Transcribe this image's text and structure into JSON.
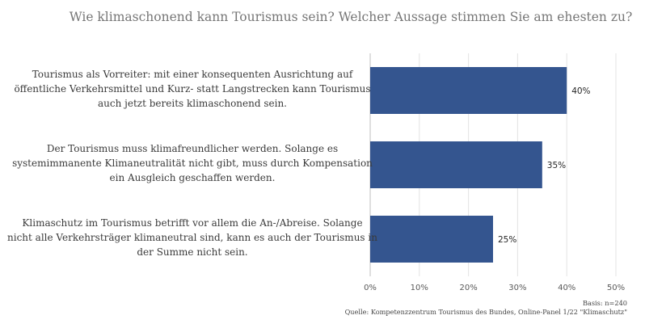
{
  "chart_data": {
    "type": "bar",
    "orientation": "horizontal",
    "title": "Wie klimaschonend kann Tourismus sein? Welcher Aussage stimmen Sie am ehesten zu?",
    "categories": [
      [
        "Tourismus als Vorreiter: mit einer konsequenten Ausrichtung auf",
        "öffentliche Verkehrsmittel und Kurz- statt Langstrecken kann Tourismus",
        "auch jetzt bereits klimaschonend sein."
      ],
      [
        "Der Tourismus muss klimafreundlicher werden. Solange es",
        "systemimmanente Klimaneutralität nicht gibt, muss durch Kompensation",
        "ein Ausgleich geschaffen werden."
      ],
      [
        "Klimaschutz im Tourismus betrifft vor allem die An-/Abreise. Solange",
        "nicht alle Verkehrsträger klimaneutral sind, kann es auch der Tourismus in",
        "der Summe nicht sein."
      ]
    ],
    "values": [
      40,
      35,
      25
    ],
    "data_labels": [
      "40%",
      "35%",
      "25%"
    ],
    "xlim": [
      0,
      50
    ],
    "ticks": [
      "0%",
      "10%",
      "20%",
      "30%",
      "40%",
      "50%"
    ],
    "tick_values": [
      0,
      10,
      20,
      30,
      40,
      50
    ],
    "grid": true,
    "bar_color": "#34558f",
    "grid_color": "#e3e3e3"
  },
  "footnote": {
    "basis": "Basis: n=240",
    "source": "Quelle: Kompetenzzentrum Tourismus des Bundes, Online-Panel 1/22 \"Klimaschutz\""
  }
}
